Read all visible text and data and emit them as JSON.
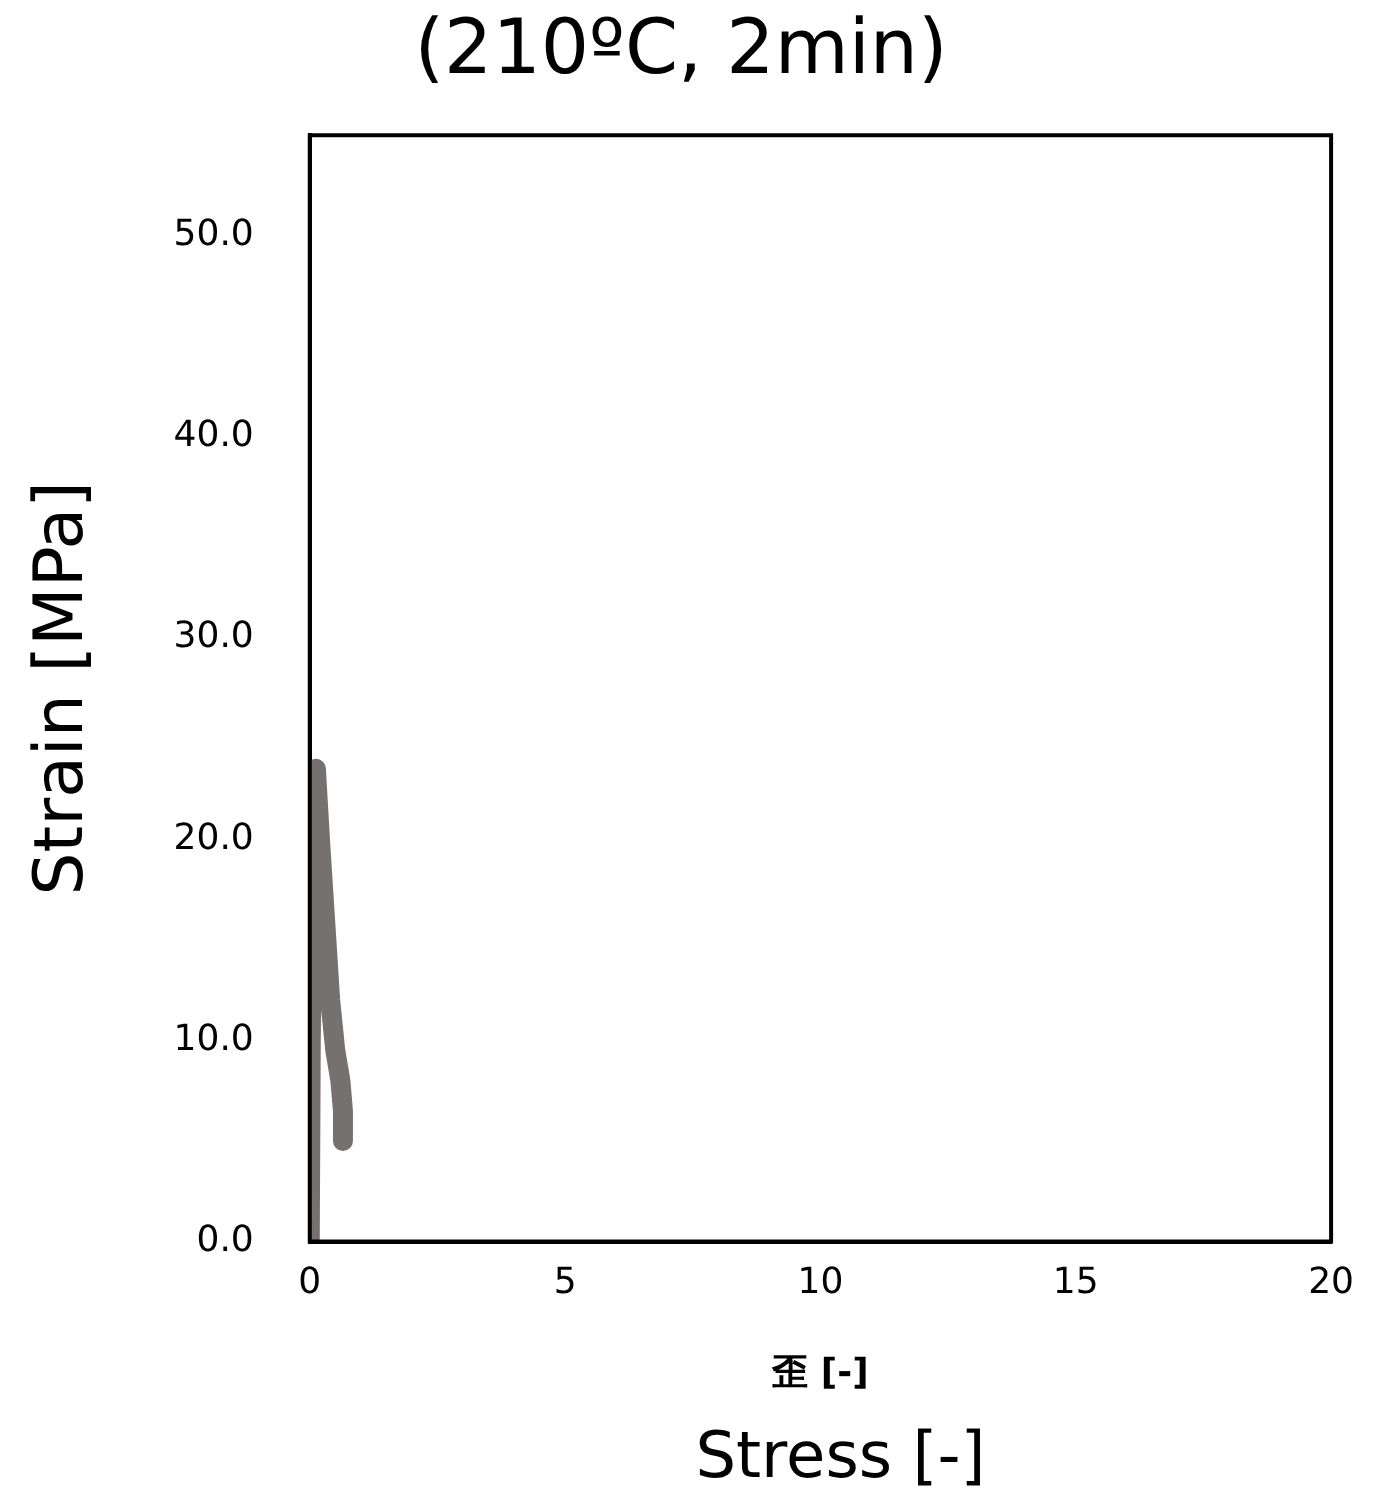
{
  "chart_data": {
    "type": "line",
    "title": "(210ºC, 2min)",
    "xlabel": "歪 [-]",
    "ylabel": "Strain [MPa]",
    "annotations": [
      "Stress [-]"
    ],
    "series": [
      {
        "color": "#757171",
        "x": [
          0,
          0.02,
          0.05,
          0.08,
          0.12,
          0.2,
          0.3,
          0.4,
          0.5,
          0.6,
          0.65,
          0.65
        ],
        "values": [
          0,
          10,
          17,
          21,
          23.5,
          20,
          16,
          12,
          9.5,
          8,
          6.5,
          5
        ]
      }
    ],
    "xlim": [
      0,
      20
    ],
    "xticks": [
      0,
      5,
      10,
      15,
      20
    ],
    "ylim": [
      0,
      55
    ],
    "yticks": [
      {
        "value": 0,
        "label": "0.0"
      },
      {
        "value": 10,
        "label": "10.0"
      },
      {
        "value": 20,
        "label": "20.0"
      },
      {
        "value": 30,
        "label": "30.0"
      },
      {
        "value": 40,
        "label": "40.0"
      },
      {
        "value": 50,
        "label": "50.0"
      }
    ],
    "grid": false,
    "legend": false,
    "marker": "none",
    "line_style": "solid"
  }
}
